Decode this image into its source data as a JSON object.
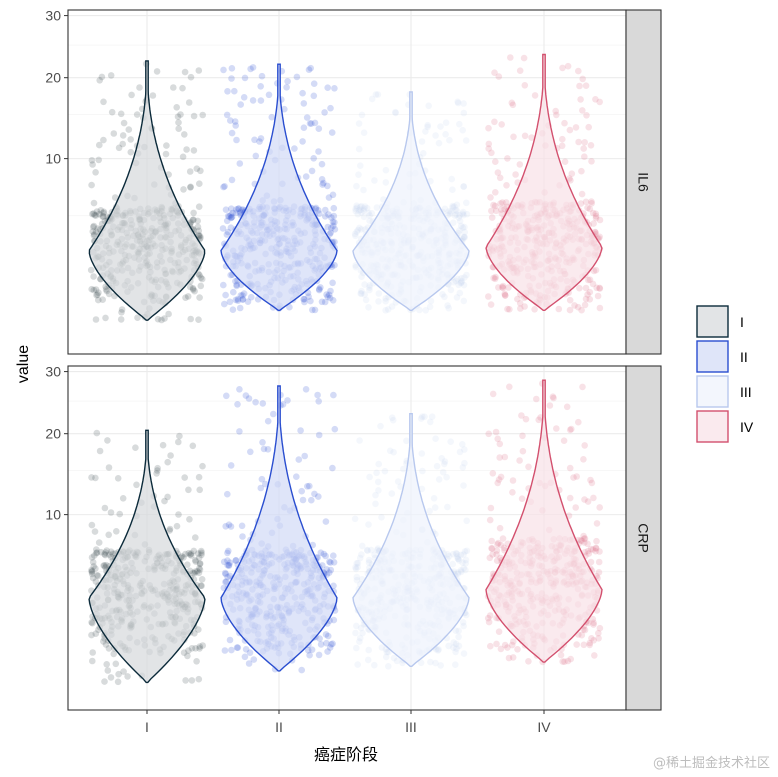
{
  "chart_data": {
    "type": "violin",
    "xlabel": "癌症阶段",
    "ylabel": "value",
    "categories": [
      "I",
      "II",
      "III",
      "IV"
    ],
    "y_scale": "sqrt",
    "ylim": [
      0,
      31
    ],
    "y_ticks": [
      10,
      20,
      30
    ],
    "grid": true,
    "legend_position": "right",
    "legend": [
      {
        "label": "I",
        "color": "#0b2a3a"
      },
      {
        "label": "II",
        "color": "#2a4ed0"
      },
      {
        "label": "III",
        "color": "#b8c8ee"
      },
      {
        "label": "IV",
        "color": "#d3506e"
      }
    ],
    "facets": [
      {
        "label": "IL6",
        "series": [
          {
            "category": "I",
            "min": 0.3,
            "max": 22.5,
            "mode": 2.8
          },
          {
            "category": "II",
            "min": 0.5,
            "max": 22.0,
            "mode": 2.8
          },
          {
            "category": "III",
            "min": 0.5,
            "max": 18.0,
            "mode": 2.8
          },
          {
            "category": "IV",
            "min": 0.5,
            "max": 23.5,
            "mode": 3.0
          }
        ]
      },
      {
        "label": "CRP",
        "series": [
          {
            "category": "I",
            "min": 0.2,
            "max": 20.5,
            "mode": 3.3
          },
          {
            "category": "II",
            "min": 0.4,
            "max": 27.5,
            "mode": 3.3
          },
          {
            "category": "III",
            "min": 0.5,
            "max": 23.0,
            "mode": 3.3
          },
          {
            "category": "IV",
            "min": 0.6,
            "max": 28.5,
            "mode": 3.8
          }
        ]
      }
    ]
  },
  "watermark": "@稀土掘金技术社区"
}
